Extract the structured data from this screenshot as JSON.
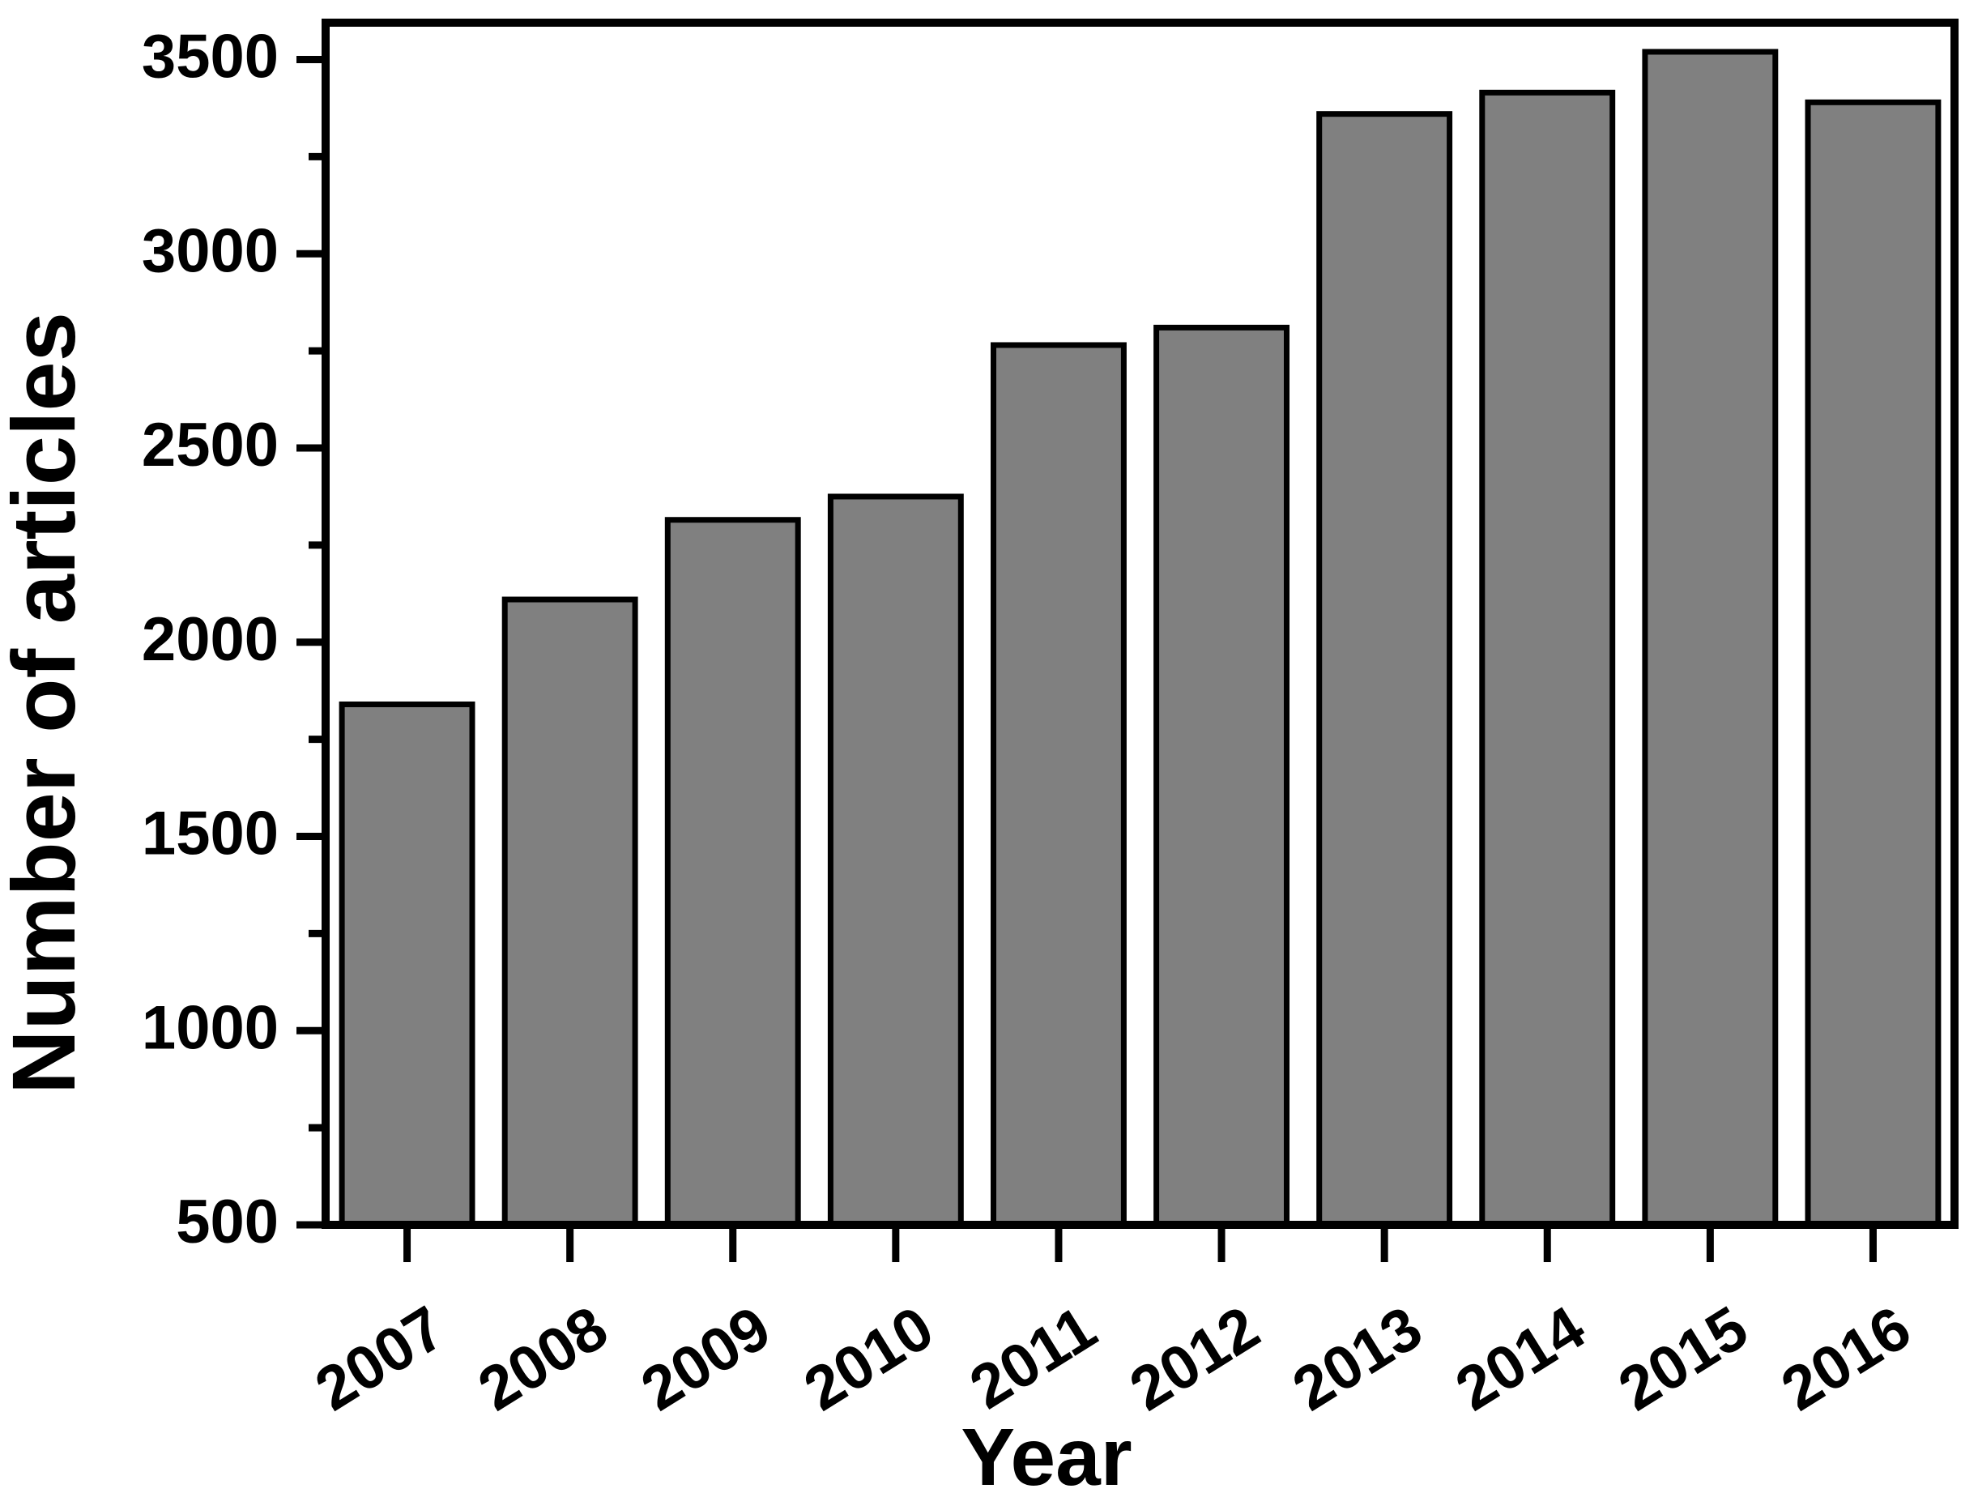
{
  "figure": {
    "background_color": "#ffffff",
    "bar_fill_color": "#808080",
    "bar_border_color": "#000000",
    "axis_color": "#000000",
    "text_color": "#000000"
  },
  "chart_data": {
    "type": "bar",
    "title": "",
    "xlabel": "Year",
    "ylabel": "Number of articles",
    "categories": [
      "2007",
      "2008",
      "2009",
      "2010",
      "2011",
      "2012",
      "2013",
      "2014",
      "2015",
      "2016"
    ],
    "values": [
      1840,
      2110,
      2315,
      2375,
      2765,
      2810,
      3360,
      3415,
      3520,
      3390
    ],
    "ylim": [
      500,
      3595
    ],
    "y_major_ticks": [
      500,
      1000,
      1500,
      2000,
      2500,
      3000,
      3500
    ],
    "y_minor_ticks": [
      750,
      1250,
      1750,
      2250,
      2750,
      3250
    ],
    "x_tick_label_rotation_deg": -32,
    "bar_width_fraction": 0.8,
    "grid": false,
    "legend": null
  }
}
